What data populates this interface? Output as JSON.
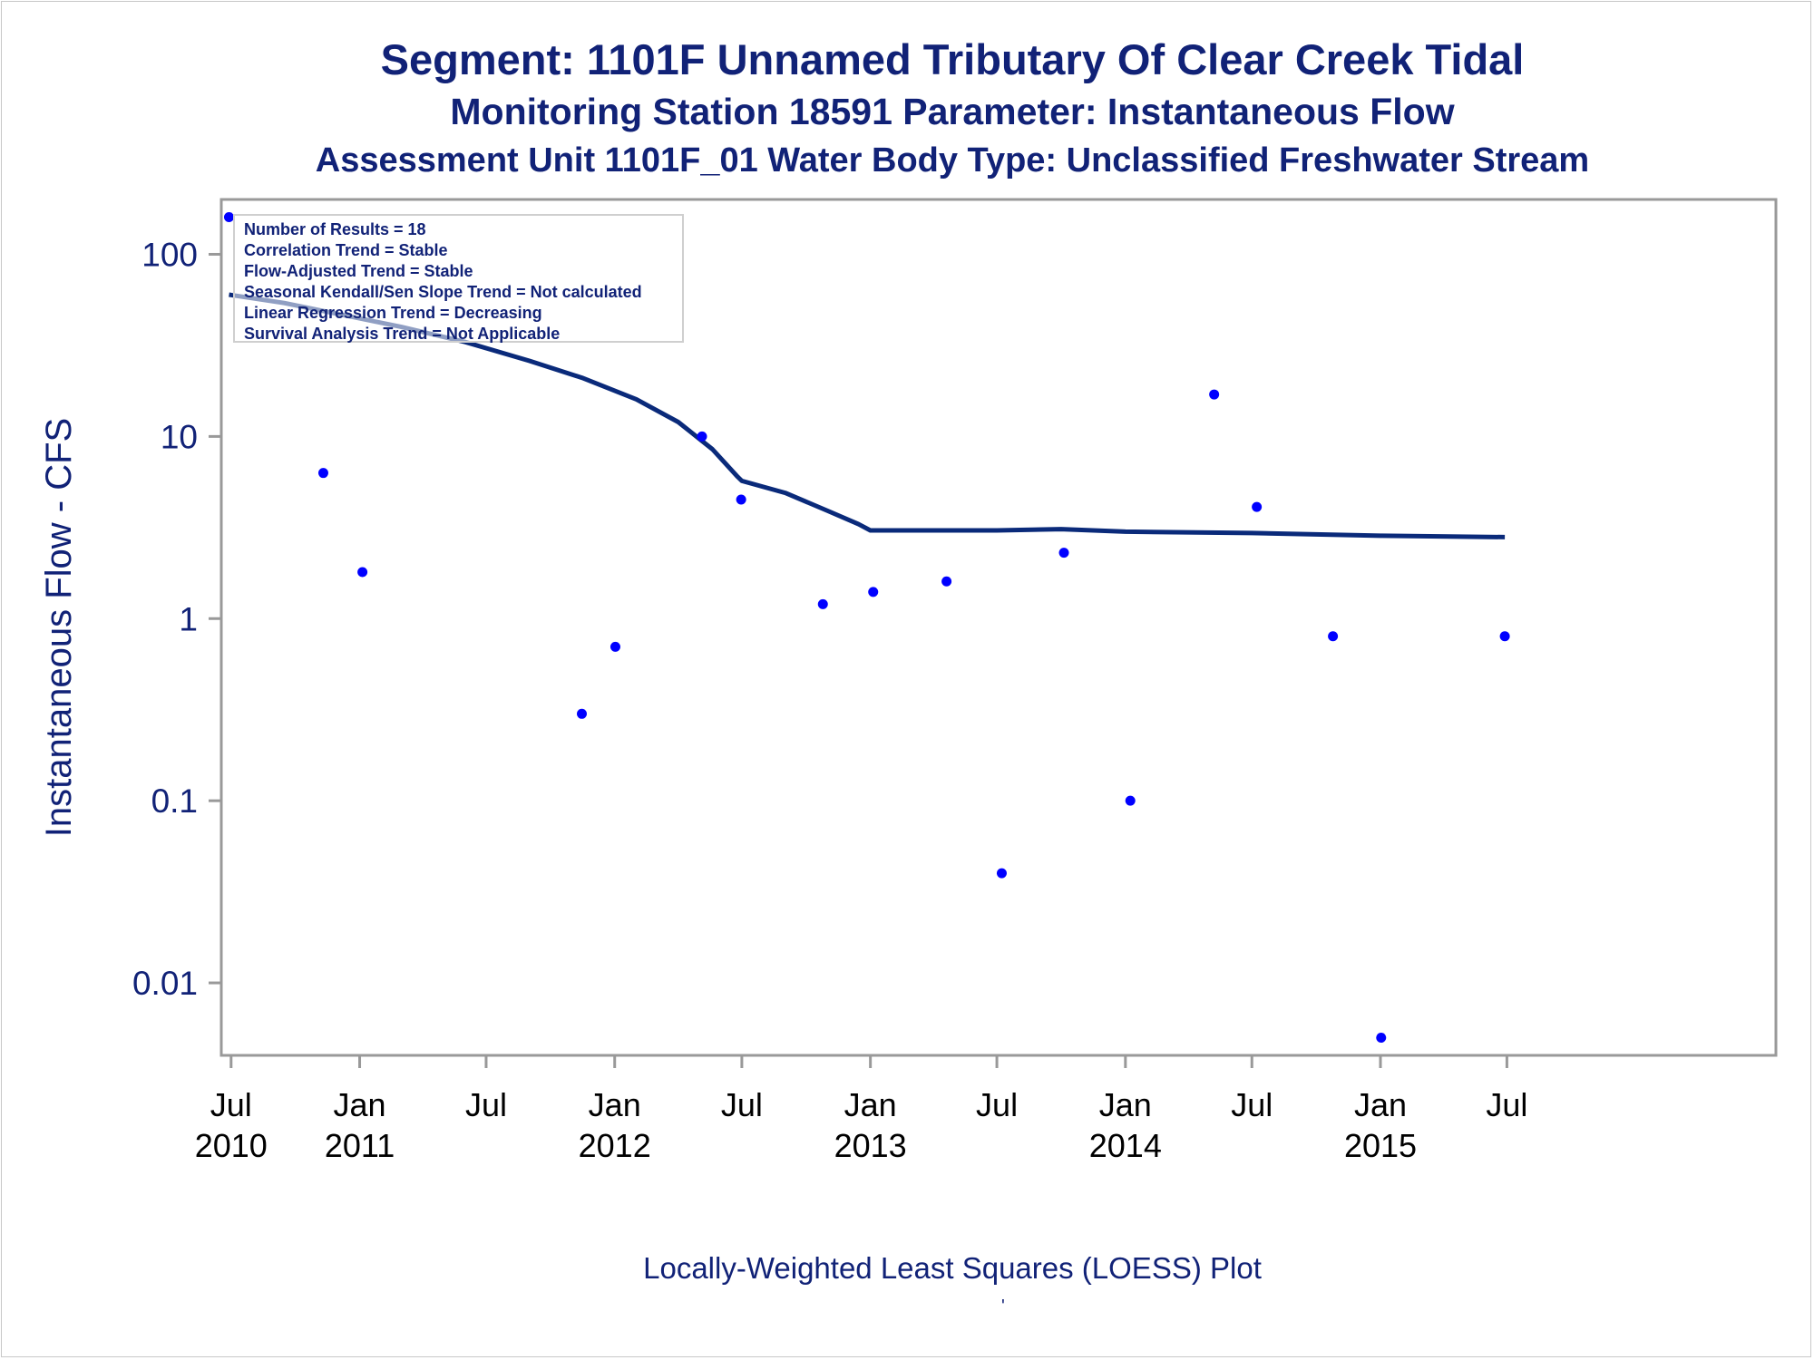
{
  "titles": {
    "line1": "Segment: 1101F  Unnamed Tributary Of Clear Creek Tidal",
    "line2": "Monitoring Station 18591 Parameter: Instantaneous Flow",
    "line3": "Assessment Unit 1101F_01   Water Body Type: Unclassified Freshwater Stream"
  },
  "footnote": "Locally-Weighted Least Squares (LOESS) Plot",
  "footnote_mark": "'",
  "stats": [
    "Number of Results = 18",
    "Correlation Trend = Stable",
    "Flow-Adjusted Trend = Stable",
    "Seasonal Kendall/Sen Slope Trend = Not calculated",
    "Linear Regression Trend = Decreasing",
    "Survival Analysis Trend = Not Applicable"
  ],
  "colors": {
    "text": "#112277",
    "points": "#0000ff",
    "loess_line": "#0a2a7a",
    "axes": "#999999"
  },
  "chart_data": {
    "type": "scatter",
    "ylabel": "Instantaneous Flow - CFS",
    "y_scale": "log",
    "ylim": [
      0.004,
      200
    ],
    "xlim": [
      "2010-06-17",
      "2016-07-20"
    ],
    "y_ticks": [
      {
        "value": 0.01,
        "label": "0.01"
      },
      {
        "value": 0.1,
        "label": "0.1"
      },
      {
        "value": 1,
        "label": "1"
      },
      {
        "value": 10,
        "label": "10"
      },
      {
        "value": 100,
        "label": "100"
      }
    ],
    "x_ticks": [
      {
        "date": "2010-07-01",
        "month": "Jul",
        "year": "2010"
      },
      {
        "date": "2011-01-01",
        "month": "Jan",
        "year": "2011"
      },
      {
        "date": "2011-07-01",
        "month": "Jul",
        "year": ""
      },
      {
        "date": "2012-01-01",
        "month": "Jan",
        "year": "2012"
      },
      {
        "date": "2012-07-01",
        "month": "Jul",
        "year": ""
      },
      {
        "date": "2013-01-01",
        "month": "Jan",
        "year": "2013"
      },
      {
        "date": "2013-07-01",
        "month": "Jul",
        "year": ""
      },
      {
        "date": "2014-01-01",
        "month": "Jan",
        "year": "2014"
      },
      {
        "date": "2014-07-01",
        "month": "Jul",
        "year": ""
      },
      {
        "date": "2015-01-01",
        "month": "Jan",
        "year": "2015"
      },
      {
        "date": "2015-07-01",
        "month": "Jul",
        "year": ""
      }
    ],
    "grid": false,
    "series": [
      {
        "type": "scatter",
        "points": [
          {
            "x": "2010-06-28",
            "y": 160
          },
          {
            "x": "2010-11-10",
            "y": 6.3
          },
          {
            "x": "2011-01-05",
            "y": 1.8
          },
          {
            "x": "2011-11-15",
            "y": 0.3
          },
          {
            "x": "2012-01-02",
            "y": 0.7
          },
          {
            "x": "2012-05-05",
            "y": 10
          },
          {
            "x": "2012-06-30",
            "y": 4.5
          },
          {
            "x": "2012-10-25",
            "y": 1.2
          },
          {
            "x": "2013-01-05",
            "y": 1.4
          },
          {
            "x": "2013-04-20",
            "y": 1.6
          },
          {
            "x": "2013-07-08",
            "y": 0.04
          },
          {
            "x": "2013-10-05",
            "y": 2.3
          },
          {
            "x": "2014-01-08",
            "y": 0.1
          },
          {
            "x": "2014-05-08",
            "y": 17
          },
          {
            "x": "2014-07-08",
            "y": 4.1
          },
          {
            "x": "2014-10-25",
            "y": 0.8
          },
          {
            "x": "2015-01-02",
            "y": 0.005
          },
          {
            "x": "2015-06-28",
            "y": 0.8
          }
        ]
      },
      {
        "type": "line",
        "points": [
          {
            "x": "2010-06-28",
            "y": 60
          },
          {
            "x": "2010-09-15",
            "y": 54
          },
          {
            "x": "2010-12-01",
            "y": 47
          },
          {
            "x": "2011-03-01",
            "y": 40
          },
          {
            "x": "2011-06-01",
            "y": 33
          },
          {
            "x": "2011-09-01",
            "y": 26
          },
          {
            "x": "2011-11-15",
            "y": 21
          },
          {
            "x": "2012-02-01",
            "y": 16
          },
          {
            "x": "2012-04-01",
            "y": 12
          },
          {
            "x": "2012-05-20",
            "y": 8.5
          },
          {
            "x": "2012-06-25",
            "y": 6.0
          },
          {
            "x": "2012-07-01",
            "y": 5.7
          },
          {
            "x": "2012-09-01",
            "y": 4.9
          },
          {
            "x": "2012-11-01",
            "y": 3.9
          },
          {
            "x": "2012-12-15",
            "y": 3.3
          },
          {
            "x": "2013-01-01",
            "y": 3.05
          },
          {
            "x": "2013-07-01",
            "y": 3.05
          },
          {
            "x": "2013-10-01",
            "y": 3.1
          },
          {
            "x": "2014-01-01",
            "y": 3.0
          },
          {
            "x": "2014-07-01",
            "y": 2.95
          },
          {
            "x": "2015-01-01",
            "y": 2.85
          },
          {
            "x": "2015-06-28",
            "y": 2.8
          }
        ]
      }
    ]
  }
}
